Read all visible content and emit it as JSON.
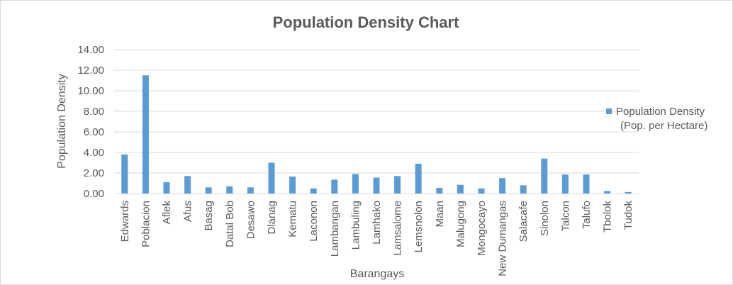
{
  "chart_data": {
    "type": "bar",
    "title": "Population Density Chart",
    "xlabel": "Barangays",
    "ylabel": "Population Density",
    "ylim": [
      0,
      14
    ],
    "yticks": [
      "0.00",
      "2.00",
      "4.00",
      "6.00",
      "8.00",
      "10.00",
      "12.00",
      "14.00"
    ],
    "grid": true,
    "legend_position": "right",
    "legend_lines": [
      "Population Density",
      "(Pop. per Hectare)"
    ],
    "categories": [
      "Edwards",
      "Poblacion",
      "Aflek",
      "Afus",
      "Basag",
      "Datal Bob",
      "Desawo",
      "Dlanag",
      "Kematu",
      "Laconon",
      "Lambangan",
      "Lambuling",
      "Lamhako",
      "Lamsalome",
      "Lemsnolon",
      "Maan",
      "Malugong",
      "Mongocayo",
      "New Dumangas",
      "Salacafe",
      "Sinolon",
      "Talcon",
      "Talufo",
      "Tbolok",
      "Tudok"
    ],
    "series": [
      {
        "name": "Population Density (Pop. per Hectare)",
        "color": "#5b9bd5",
        "values": [
          3.8,
          11.5,
          1.1,
          1.7,
          0.6,
          0.7,
          0.6,
          3.0,
          1.65,
          0.5,
          1.35,
          1.9,
          1.55,
          1.7,
          2.9,
          0.55,
          0.85,
          0.5,
          1.5,
          0.8,
          3.4,
          1.85,
          1.85,
          0.25,
          0.15
        ]
      }
    ]
  }
}
